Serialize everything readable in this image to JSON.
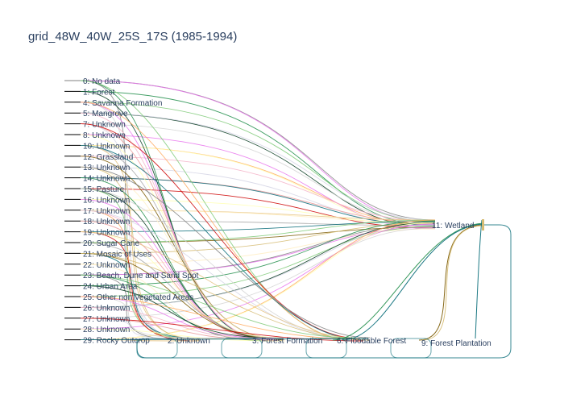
{
  "chart_data": {
    "type": "sankey",
    "title": "grid_48W_40W_25S_17S (1985-1994)",
    "left_nodes": [
      {
        "label": "0: No data"
      },
      {
        "label": "1: Forest"
      },
      {
        "label": "4: Savanna Formation"
      },
      {
        "label": "5: Mangrove"
      },
      {
        "label": "7: Unknown"
      },
      {
        "label": "8: Unknown"
      },
      {
        "label": "10: Unknown"
      },
      {
        "label": "12: Grassland"
      },
      {
        "label": "13: Unknown"
      },
      {
        "label": "14: Unknown"
      },
      {
        "label": "15: Pasture"
      },
      {
        "label": "16: Unknown"
      },
      {
        "label": "17: Unknown"
      },
      {
        "label": "18: Unknown"
      },
      {
        "label": "19: Unknown"
      },
      {
        "label": "20: Sugar Cane"
      },
      {
        "label": "21: Mosaic of Uses"
      },
      {
        "label": "22: Unknown"
      },
      {
        "label": "23: Beach, Dune and Sand Spot"
      },
      {
        "label": "24: Urban Area"
      },
      {
        "label": "25: Other non Vegetated Areas"
      },
      {
        "label": "26: Unknown"
      },
      {
        "label": "27: Unknown"
      },
      {
        "label": "28: Unknown"
      },
      {
        "label": "29: Rocky Outcrop"
      }
    ],
    "bottom_nodes": [
      {
        "label": "2: Unknown"
      },
      {
        "label": "3: Forest Formation"
      },
      {
        "label": "6: Floodable Forest"
      },
      {
        "label": "9: Forest Plantation"
      }
    ],
    "right_nodes": [
      {
        "label": "11: Wetland"
      }
    ],
    "link_colors": [
      "#808080",
      "#1f8d49",
      "#7dc975",
      "#04381d",
      "#d4d4d4",
      "#e974ed",
      "#ffaa5f",
      "#f5b3c8",
      "#d5d5e5",
      "#ea9999",
      "#cc0000",
      "#ffffb2",
      "#e5c27f",
      "#a8a8a8",
      "#026975",
      "#7a5900",
      "#d6bc74",
      "#ffefc3"
    ]
  }
}
